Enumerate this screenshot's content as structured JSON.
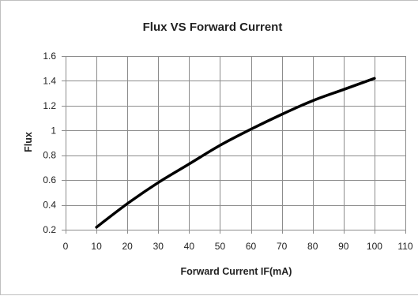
{
  "chart_data": {
    "type": "line",
    "title": "Flux VS Forward Current",
    "xlabel": "Forward Current IF(mA)",
    "ylabel": "Flux",
    "xlim": [
      0,
      110
    ],
    "ylim": [
      0.2,
      1.6
    ],
    "xticks": [
      0,
      10,
      20,
      30,
      40,
      50,
      60,
      70,
      80,
      90,
      100,
      110
    ],
    "yticks": [
      0.2,
      0.4,
      0.6,
      0.8,
      1,
      1.2,
      1.4,
      1.6
    ],
    "xtick_labels": [
      "0",
      "10",
      "20",
      "30",
      "40",
      "50",
      "60",
      "70",
      "80",
      "90",
      "100",
      "110"
    ],
    "ytick_labels": [
      "0.2",
      "0.4",
      "0.6",
      "0.8",
      "1",
      "1.2",
      "1.4",
      "1.6"
    ],
    "grid": true,
    "legend": "none",
    "series": [
      {
        "color": "#000000",
        "x": [
          10,
          20,
          30,
          40,
          50,
          60,
          70,
          80,
          90,
          100
        ],
        "y": [
          0.22,
          0.41,
          0.58,
          0.73,
          0.88,
          1.01,
          1.13,
          1.24,
          1.33,
          1.42
        ]
      }
    ]
  }
}
